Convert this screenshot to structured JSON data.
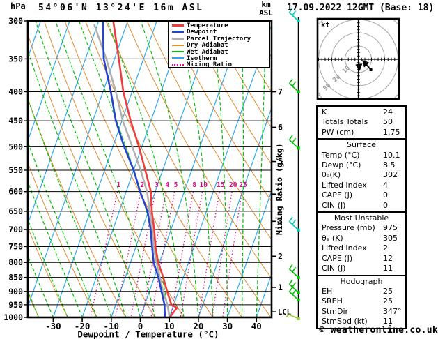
{
  "header": {
    "pressure_unit": "hPa",
    "station_title": "54°06'N 13°24'E 16m ASL",
    "date_title": "17.09.2022 12GMT (Base: 18)",
    "altitude_unit_line1": "km",
    "altitude_unit_line2": "ASL"
  },
  "legend": {
    "items": [
      {
        "label": "Temperature",
        "color": "#ee3c3c",
        "style": "solid-thick"
      },
      {
        "label": "Dewpoint",
        "color": "#2444cc",
        "style": "solid-thick"
      },
      {
        "label": "Parcel Trajectory",
        "color": "#b0b0b0",
        "style": "solid-thick"
      },
      {
        "label": "Dry Adiabat",
        "color": "#e08a30",
        "style": "solid-thin"
      },
      {
        "label": "Wet Adiabat",
        "color": "#00c000",
        "style": "solid-thin"
      },
      {
        "label": "Isotherm",
        "color": "#2fa8ee",
        "style": "solid-thin"
      },
      {
        "label": "Mixing Ratio",
        "color": "#e00884",
        "style": "dotted"
      }
    ]
  },
  "chart_data": {
    "type": "line",
    "subtype": "skew-t log-p sounding",
    "title": "54°06'N 13°24'E 16m ASL",
    "xlabel": "Dewpoint / Temperature (°C)",
    "ylabel": "hPa",
    "pressure_ticks": [
      300,
      350,
      400,
      450,
      500,
      550,
      600,
      650,
      700,
      750,
      800,
      850,
      900,
      950,
      1000
    ],
    "temp_ticks": [
      -30,
      -20,
      -10,
      0,
      10,
      20,
      30,
      40
    ],
    "km_axis_ticks": [
      {
        "label": "7",
        "p": 400
      },
      {
        "label": "6",
        "p": 462
      },
      {
        "label": "5",
        "p": 531
      },
      {
        "label": "4",
        "p": 606
      },
      {
        "label": "3",
        "p": 677
      },
      {
        "label": "2",
        "p": 780
      },
      {
        "label": "1",
        "p": 885
      }
    ],
    "lcl": {
      "label": "LCL",
      "p": 978
    },
    "mixing_ratio_axis_label": "Mixing Ratio (g/kg)",
    "mixing_ratio_values": [
      1,
      2,
      3,
      4,
      5,
      8,
      10,
      15,
      20,
      25
    ],
    "series": [
      {
        "name": "Temperature",
        "color": "#ee3c3c",
        "width": 2.6,
        "points_p_T": [
          [
            300,
            -45
          ],
          [
            350,
            -38.5
          ],
          [
            400,
            -33
          ],
          [
            450,
            -27
          ],
          [
            500,
            -21
          ],
          [
            550,
            -16
          ],
          [
            600,
            -11.5
          ],
          [
            650,
            -8.8
          ],
          [
            700,
            -5.8
          ],
          [
            750,
            -3.3
          ],
          [
            800,
            -0.5
          ],
          [
            850,
            3.1
          ],
          [
            900,
            6.1
          ],
          [
            950,
            9.2
          ],
          [
            962,
            11.5
          ],
          [
            1000,
            10.1
          ]
        ]
      },
      {
        "name": "Dewpoint",
        "color": "#2444cc",
        "width": 2.6,
        "points_p_T": [
          [
            300,
            -48.6
          ],
          [
            350,
            -43.7
          ],
          [
            400,
            -37.3
          ],
          [
            450,
            -32.1
          ],
          [
            500,
            -26.1
          ],
          [
            550,
            -20
          ],
          [
            600,
            -15.2
          ],
          [
            650,
            -10.3
          ],
          [
            700,
            -7
          ],
          [
            750,
            -4.5
          ],
          [
            800,
            -2
          ],
          [
            850,
            1.4
          ],
          [
            900,
            4.2
          ],
          [
            950,
            6.8
          ],
          [
            1000,
            8.5
          ]
        ]
      },
      {
        "name": "Parcel Trajectory",
        "color": "#b0b0b0",
        "width": 2.6,
        "points_p_T": [
          [
            305,
            -51
          ],
          [
            350,
            -42.8
          ],
          [
            400,
            -35.6
          ],
          [
            450,
            -29.7
          ],
          [
            500,
            -23.3
          ],
          [
            550,
            -17.6
          ],
          [
            600,
            -12.8
          ],
          [
            650,
            -9.5
          ],
          [
            700,
            -6.5
          ],
          [
            750,
            -4
          ],
          [
            800,
            -1
          ],
          [
            850,
            1.9
          ],
          [
            900,
            4.7
          ],
          [
            950,
            7.8
          ],
          [
            1000,
            10.1
          ]
        ]
      }
    ],
    "wind_barbs": [
      {
        "p": 300,
        "color": "#00c8b4"
      },
      {
        "p": 400,
        "color": "#00c000"
      },
      {
        "p": 503,
        "color": "#00c000"
      },
      {
        "p": 701,
        "color": "#00c8b4"
      },
      {
        "p": 850,
        "color": "#00c000"
      },
      {
        "p": 904,
        "color": "#00c000"
      },
      {
        "p": 932,
        "color": "#00c000"
      },
      {
        "p": 1005,
        "color": "#9acd32",
        "hook": true
      }
    ],
    "background": {
      "isotherm": {
        "color": "#2fa8ee",
        "step": 10
      },
      "dry_adiabat": {
        "color": "#e08a30",
        "step": 10
      },
      "wet_adiabat": {
        "color": "#00c000",
        "step": 5
      },
      "mixing_ratio_color": "#e00884",
      "grid_color": "#000000"
    }
  },
  "hodograph": {
    "unit_label": "kt",
    "ring_values": [
      10,
      20,
      30,
      40
    ],
    "ring_color": "#aaaaaa",
    "kt_per_ring": 10,
    "tick_step_kt": 5,
    "vectors": [
      {
        "from_kt": [
          0,
          0
        ],
        "to_kt": [
          1,
          -8
        ]
      },
      {
        "from_kt": [
          9.5,
          -7.9
        ],
        "to_kt": [
          3.5,
          -1
        ]
      }
    ],
    "marker_square_kt": [
      9.5,
      -7.9
    ]
  },
  "table": {
    "sections": [
      {
        "header": null,
        "rows": [
          [
            "K",
            "24"
          ],
          [
            "Totals Totals",
            "50"
          ],
          [
            "PW (cm)",
            "1.75"
          ]
        ]
      },
      {
        "header": "Surface",
        "rows": [
          [
            "Temp (°C)",
            "10.1"
          ],
          [
            "Dewp (°C)",
            "8.5"
          ],
          [
            "θₑ(K)",
            "302"
          ],
          [
            "Lifted Index",
            "4"
          ],
          [
            "CAPE (J)",
            "0"
          ],
          [
            "CIN (J)",
            "0"
          ]
        ]
      },
      {
        "header": "Most Unstable",
        "rows": [
          [
            "Pressure (mb)",
            "975"
          ],
          [
            "θₑ (K)",
            "305"
          ],
          [
            "Lifted Index",
            "2"
          ],
          [
            "CAPE (J)",
            "12"
          ],
          [
            "CIN (J)",
            "11"
          ]
        ]
      },
      {
        "header": "Hodograph",
        "rows": [
          [
            "EH",
            "25"
          ],
          [
            "SREH",
            "25"
          ],
          [
            "StmDir",
            "347°"
          ],
          [
            "StmSpd (kt)",
            "11"
          ]
        ]
      }
    ]
  },
  "footer": {
    "copyright": "© weatheronline.co.uk"
  }
}
